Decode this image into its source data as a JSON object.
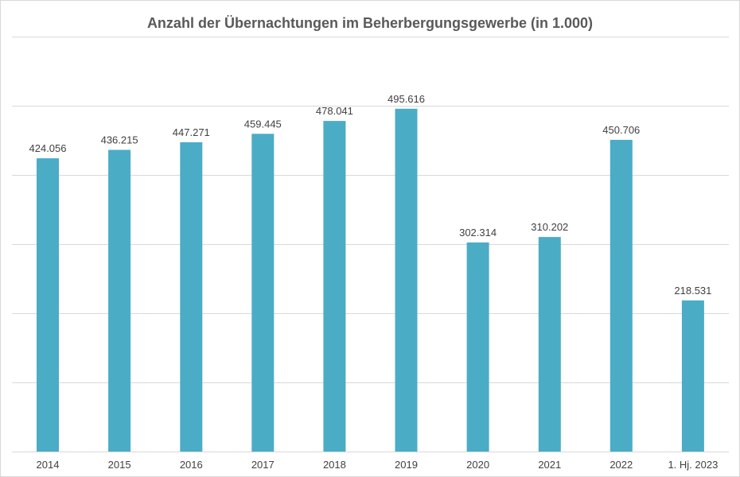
{
  "chart_data": {
    "type": "bar",
    "title": "Anzahl der Übernachtungen im Beherbergungsgewerbe (in 1.000)",
    "categories": [
      "2014",
      "2015",
      "2016",
      "2017",
      "2018",
      "2019",
      "2020",
      "2021",
      "2022",
      "1. Hj. 2023"
    ],
    "values": [
      424.056,
      436.215,
      447.271,
      459.445,
      478.041,
      495.616,
      302.314,
      310.202,
      450.706,
      218.531
    ],
    "value_labels": [
      "424.056",
      "436.215",
      "447.271",
      "459.445",
      "478.041",
      "495.616",
      "302.314",
      "310.202",
      "450.706",
      "218.531"
    ],
    "xlabel": "",
    "ylabel": "",
    "ylim": [
      0,
      600
    ],
    "yticks": [
      0,
      100,
      200,
      300,
      400,
      500,
      600
    ],
    "y_axis_labels_shown": false,
    "grid": true,
    "legend": "none",
    "bar_color": "#4BACC6",
    "grid_color": "#d9d9d9"
  }
}
